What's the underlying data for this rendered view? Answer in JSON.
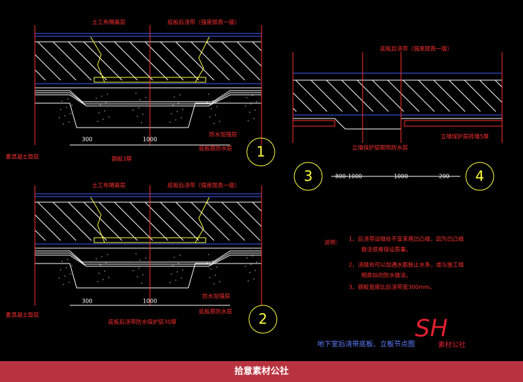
{
  "details": [
    {
      "number": "1",
      "labels": [
        "土工布隔离层",
        "底板后浇带（强度提高一级）",
        "防水加强层",
        "底板原防水层",
        "素混凝土垫层",
        "钢板3厚"
      ],
      "dims": [
        "300",
        "1000"
      ]
    },
    {
      "number": "2",
      "labels": [
        "土工布隔离层",
        "底板后浇带（强度提高一级）",
        "防水加强层",
        "底板原防水层",
        "素混凝土垫层",
        "底板后浇带防水保护层30厚"
      ],
      "dims": [
        "300",
        "1000"
      ]
    },
    {
      "numbers": [
        "3",
        "4"
      ],
      "labels": [
        "底板后浇带（强度提高一级）",
        "立墙保护层砖墙5厚",
        "立墙保护层砌筑防水层"
      ],
      "dims": [
        "800-1000",
        "1000",
        "200"
      ]
    }
  ],
  "notes": {
    "heading": "说明：",
    "items": [
      "1、后浇带设缝处不宜采用凹凸缝，因为凹凸缝",
      "做法很难保证质量。",
      "2、浇缝处可以加遇水膨胀止水条，或与施工缝",
      "相类似的防水做法。",
      "3、钢板宽度比后浇带宽300mm。"
    ]
  },
  "caption": "地下室后浇带底板、立板节点图",
  "logo": {
    "mark": "SH",
    "name": "素材公社"
  },
  "banner": "拾意素材公社"
}
